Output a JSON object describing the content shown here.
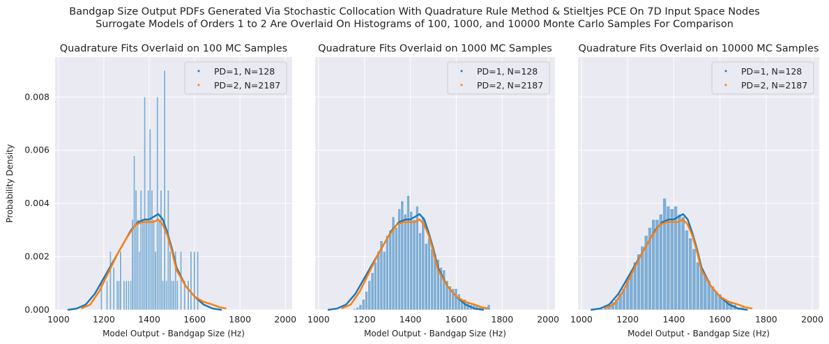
{
  "figure": {
    "suptitle_line1": "Bandgap Size Output PDFs Generated Via Stochastic Collocation With Quadrature Rule Method & Stieltjes PCE On 7D Input Space Nodes",
    "suptitle_line2": "Surrogate Models of Orders 1 to 2 Are Overlaid On Histograms of 100, 1000, and 10000 Monte Carlo Samples For Comparison"
  },
  "colors": {
    "panel_bg": "#eaeaf2",
    "grid": "#ffffff",
    "hist": "#7fadd4",
    "pd1": "#1f77b4",
    "pd2": "#ff7f0e"
  },
  "chart_data": [
    {
      "type": "bar",
      "title": "Quadrature Fits Overlaid on 100 MC Samples",
      "xlabel": "Model Output - Bandgap Size (Hz)",
      "ylabel": "Probability Density",
      "xlim": [
        985,
        2030
      ],
      "ylim": [
        0,
        0.0095
      ],
      "xticks": [
        "1000",
        "1200",
        "1400",
        "1600",
        "1800",
        "2000"
      ],
      "yticks": [
        "0.000",
        "0.002",
        "0.004",
        "0.006",
        "0.008"
      ],
      "grid": true,
      "legend_position": "top-right",
      "histogram": {
        "bin_width": 8,
        "bins": [
          [
            1185,
            0.0011
          ],
          [
            1210,
            0.0011
          ],
          [
            1225,
            0.0022
          ],
          [
            1240,
            0.0016
          ],
          [
            1255,
            0.0011
          ],
          [
            1262,
            0.0011
          ],
          [
            1270,
            0.0022
          ],
          [
            1285,
            0.0011
          ],
          [
            1295,
            0.0011
          ],
          [
            1305,
            0.0011
          ],
          [
            1315,
            0.0011
          ],
          [
            1322,
            0.0034
          ],
          [
            1330,
            0.0058
          ],
          [
            1338,
            0.0045
          ],
          [
            1345,
            0.0034
          ],
          [
            1352,
            0.0022
          ],
          [
            1360,
            0.0045
          ],
          [
            1368,
            0.0034
          ],
          [
            1376,
            0.008
          ],
          [
            1384,
            0.0034
          ],
          [
            1392,
            0.0045
          ],
          [
            1400,
            0.0068
          ],
          [
            1408,
            0.0045
          ],
          [
            1416,
            0.0034
          ],
          [
            1424,
            0.0022
          ],
          [
            1432,
            0.008
          ],
          [
            1440,
            0.0034
          ],
          [
            1448,
            0.0045
          ],
          [
            1456,
            0.0011
          ],
          [
            1464,
            0.009
          ],
          [
            1472,
            0.0011
          ],
          [
            1480,
            0.0045
          ],
          [
            1488,
            0.0022
          ],
          [
            1496,
            0.0011
          ],
          [
            1504,
            0.0011
          ],
          [
            1512,
            0.0022
          ],
          [
            1520,
            0.0011
          ],
          [
            1536,
            0.0022
          ],
          [
            1552,
            0.0011
          ],
          [
            1568,
            0.0011
          ],
          [
            1580,
            0.0022
          ],
          [
            1595,
            0.0022
          ],
          [
            1610,
            0.0022
          ]
        ]
      },
      "series": [
        {
          "name": "PD=1, N=128",
          "x": [
            1040,
            1080,
            1120,
            1160,
            1200,
            1240,
            1280,
            1320,
            1350,
            1380,
            1400,
            1420,
            1440,
            1460,
            1480,
            1500,
            1520,
            1560,
            1600,
            1640,
            1680,
            1720
          ],
          "y": [
            0.0,
            5e-05,
            0.0002,
            0.0006,
            0.0012,
            0.0018,
            0.0024,
            0.003,
            0.0033,
            0.0034,
            0.0034,
            0.0035,
            0.0036,
            0.0034,
            0.0029,
            0.0023,
            0.0016,
            0.0009,
            0.0005,
            0.0002,
            5e-05,
            0.0
          ]
        },
        {
          "name": "PD=2, N=2187",
          "x": [
            1100,
            1140,
            1180,
            1220,
            1260,
            1300,
            1340,
            1370,
            1400,
            1420,
            1440,
            1460,
            1480,
            1500,
            1520,
            1560,
            1600,
            1640,
            1680,
            1710,
            1740
          ],
          "y": [
            5e-05,
            0.0002,
            0.0007,
            0.0014,
            0.0021,
            0.0027,
            0.0032,
            0.0033,
            0.0033,
            0.0033,
            0.0034,
            0.0032,
            0.0028,
            0.0022,
            0.0015,
            0.0009,
            0.0005,
            0.0003,
            0.0002,
            0.0001,
            5e-05
          ]
        }
      ]
    },
    {
      "type": "bar",
      "title": "Quadrature Fits Overlaid on 1000 MC Samples",
      "xlabel": "Model Output - Bandgap Size (Hz)",
      "xlim": [
        985,
        2030
      ],
      "ylim": [
        0,
        0.0095
      ],
      "xticks": [
        "1000",
        "1200",
        "1400",
        "1600",
        "1800",
        "2000"
      ],
      "grid": true,
      "legend_position": "top-right",
      "histogram": {
        "bin_width": 13,
        "bins": [
          [
            1150,
            5e-05
          ],
          [
            1163,
            0.0001
          ],
          [
            1176,
            0.0002
          ],
          [
            1189,
            0.0004
          ],
          [
            1202,
            0.0007
          ],
          [
            1215,
            0.0011
          ],
          [
            1228,
            0.0014
          ],
          [
            1241,
            0.0018
          ],
          [
            1254,
            0.0022
          ],
          [
            1267,
            0.0026
          ],
          [
            1280,
            0.0022
          ],
          [
            1293,
            0.0028
          ],
          [
            1306,
            0.003
          ],
          [
            1319,
            0.0035
          ],
          [
            1332,
            0.0031
          ],
          [
            1345,
            0.0038
          ],
          [
            1358,
            0.0041
          ],
          [
            1371,
            0.0036
          ],
          [
            1384,
            0.0043
          ],
          [
            1397,
            0.0037
          ],
          [
            1410,
            0.0034
          ],
          [
            1423,
            0.0039
          ],
          [
            1436,
            0.0029
          ],
          [
            1449,
            0.0035
          ],
          [
            1462,
            0.0025
          ],
          [
            1475,
            0.0027
          ],
          [
            1488,
            0.0023
          ],
          [
            1501,
            0.0021
          ],
          [
            1514,
            0.0019
          ],
          [
            1527,
            0.0016
          ],
          [
            1540,
            0.0015
          ],
          [
            1553,
            0.0011
          ],
          [
            1566,
            0.0009
          ],
          [
            1579,
            0.0008
          ],
          [
            1592,
            0.0008
          ],
          [
            1605,
            0.0006
          ],
          [
            1618,
            0.0004
          ],
          [
            1631,
            0.0004
          ],
          [
            1644,
            0.0003
          ],
          [
            1657,
            0.0002
          ],
          [
            1670,
            0.0002
          ],
          [
            1683,
            0.0002
          ],
          [
            1696,
            0.0001
          ],
          [
            1709,
            0.0001
          ],
          [
            1722,
            0.0001
          ],
          [
            1735,
            0.0002
          ]
        ]
      },
      "series": [
        {
          "name": "PD=1, N=128",
          "x": [
            1040,
            1080,
            1120,
            1160,
            1200,
            1240,
            1280,
            1320,
            1350,
            1380,
            1400,
            1420,
            1440,
            1460,
            1480,
            1500,
            1520,
            1560,
            1600,
            1640,
            1680,
            1720
          ],
          "y": [
            0.0,
            5e-05,
            0.0002,
            0.0006,
            0.0012,
            0.0018,
            0.0024,
            0.003,
            0.0033,
            0.0034,
            0.0034,
            0.0035,
            0.0036,
            0.0034,
            0.0029,
            0.0023,
            0.0016,
            0.0009,
            0.0005,
            0.0002,
            5e-05,
            0.0
          ]
        },
        {
          "name": "PD=2, N=2187",
          "x": [
            1100,
            1140,
            1180,
            1220,
            1260,
            1300,
            1340,
            1370,
            1400,
            1420,
            1440,
            1460,
            1480,
            1500,
            1520,
            1560,
            1600,
            1640,
            1680,
            1710,
            1740
          ],
          "y": [
            5e-05,
            0.0002,
            0.0007,
            0.0014,
            0.0021,
            0.0027,
            0.0032,
            0.0033,
            0.0033,
            0.0033,
            0.0034,
            0.0032,
            0.0028,
            0.0022,
            0.0015,
            0.0009,
            0.0005,
            0.0003,
            0.0002,
            0.0001,
            5e-05
          ]
        }
      ]
    },
    {
      "type": "bar",
      "title": "Quadrature Fits Overlaid on 10000 MC Samples",
      "xlabel": "Model Output - Bandgap Size (Hz)",
      "xlim": [
        985,
        2030
      ],
      "ylim": [
        0,
        0.0095
      ],
      "xticks": [
        "1000",
        "1200",
        "1400",
        "1600",
        "1800",
        "2000"
      ],
      "grid": true,
      "legend_position": "top-right",
      "histogram": {
        "bin_width": 16,
        "bins": [
          [
            1080,
            5e-05
          ],
          [
            1096,
            0.0001
          ],
          [
            1112,
            0.0002
          ],
          [
            1128,
            0.0003
          ],
          [
            1144,
            0.0004
          ],
          [
            1160,
            0.0006
          ],
          [
            1176,
            0.0008
          ],
          [
            1192,
            0.0011
          ],
          [
            1208,
            0.0014
          ],
          [
            1224,
            0.0018
          ],
          [
            1240,
            0.0021
          ],
          [
            1256,
            0.0024
          ],
          [
            1272,
            0.0028
          ],
          [
            1288,
            0.0031
          ],
          [
            1304,
            0.0034
          ],
          [
            1320,
            0.0034
          ],
          [
            1336,
            0.0036
          ],
          [
            1352,
            0.0042
          ],
          [
            1368,
            0.0039
          ],
          [
            1384,
            0.0038
          ],
          [
            1400,
            0.0039
          ],
          [
            1416,
            0.0036
          ],
          [
            1432,
            0.0035
          ],
          [
            1448,
            0.003
          ],
          [
            1464,
            0.0027
          ],
          [
            1480,
            0.0023
          ],
          [
            1496,
            0.0018
          ],
          [
            1512,
            0.0016
          ],
          [
            1528,
            0.0013
          ],
          [
            1544,
            0.0011
          ],
          [
            1560,
            0.0009
          ],
          [
            1576,
            0.0007
          ],
          [
            1592,
            0.0006
          ],
          [
            1608,
            0.0004
          ],
          [
            1624,
            0.0003
          ],
          [
            1640,
            0.0003
          ],
          [
            1656,
            0.0002
          ],
          [
            1672,
            0.0001
          ],
          [
            1688,
            0.0001
          ],
          [
            1704,
            5e-05
          ]
        ]
      },
      "series": [
        {
          "name": "PD=1, N=128",
          "x": [
            1040,
            1080,
            1120,
            1160,
            1200,
            1240,
            1280,
            1320,
            1350,
            1380,
            1400,
            1420,
            1440,
            1460,
            1480,
            1500,
            1520,
            1560,
            1600,
            1640,
            1680,
            1720
          ],
          "y": [
            0.0,
            5e-05,
            0.0002,
            0.0006,
            0.0012,
            0.0018,
            0.0024,
            0.003,
            0.0033,
            0.0034,
            0.0034,
            0.0035,
            0.0036,
            0.0034,
            0.0029,
            0.0023,
            0.0016,
            0.0009,
            0.0005,
            0.0002,
            5e-05,
            0.0
          ]
        },
        {
          "name": "PD=2, N=2187",
          "x": [
            1100,
            1140,
            1180,
            1220,
            1260,
            1300,
            1340,
            1370,
            1400,
            1420,
            1440,
            1460,
            1480,
            1500,
            1520,
            1560,
            1600,
            1640,
            1680,
            1710,
            1740
          ],
          "y": [
            5e-05,
            0.0002,
            0.0007,
            0.0014,
            0.0021,
            0.0027,
            0.0032,
            0.0033,
            0.0033,
            0.0033,
            0.0034,
            0.0032,
            0.0028,
            0.0022,
            0.0015,
            0.0009,
            0.0005,
            0.0003,
            0.0002,
            0.0001,
            5e-05
          ]
        }
      ]
    }
  ]
}
